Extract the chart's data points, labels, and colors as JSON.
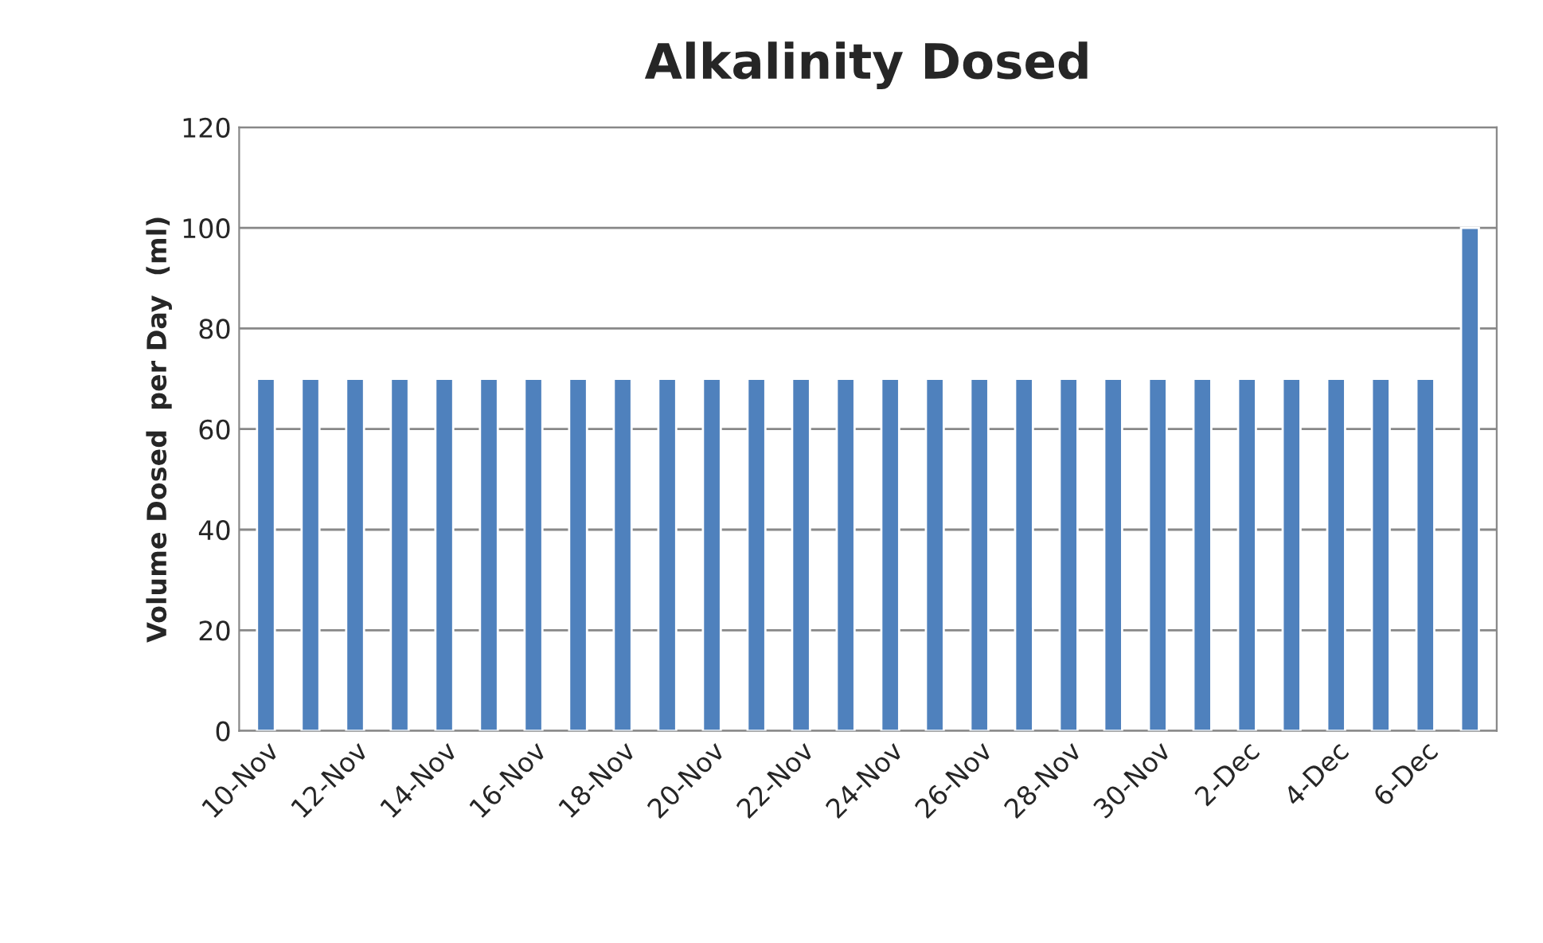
{
  "chart_data": {
    "type": "bar",
    "title": "Alkalinity Dosed",
    "ylabel": "Volume Dosed  per Day  (ml)",
    "categories": [
      "10-Nov",
      null,
      "12-Nov",
      null,
      "14-Nov",
      null,
      "16-Nov",
      null,
      "18-Nov",
      null,
      "20-Nov",
      null,
      "22-Nov",
      null,
      "24-Nov",
      null,
      "26-Nov",
      null,
      "28-Nov",
      null,
      "30-Nov",
      null,
      "2-Dec",
      null,
      "4-Dec",
      null,
      "6-Dec",
      null
    ],
    "values": [
      70,
      70,
      70,
      70,
      70,
      70,
      70,
      70,
      70,
      70,
      70,
      70,
      70,
      70,
      70,
      70,
      70,
      70,
      70,
      70,
      70,
      70,
      70,
      70,
      70,
      70,
      70,
      100
    ],
    "color": "#4f81bd",
    "ylim": [
      0,
      120
    ],
    "yticks": [
      0,
      20,
      40,
      60,
      80,
      100,
      120
    ],
    "grid": "y"
  }
}
